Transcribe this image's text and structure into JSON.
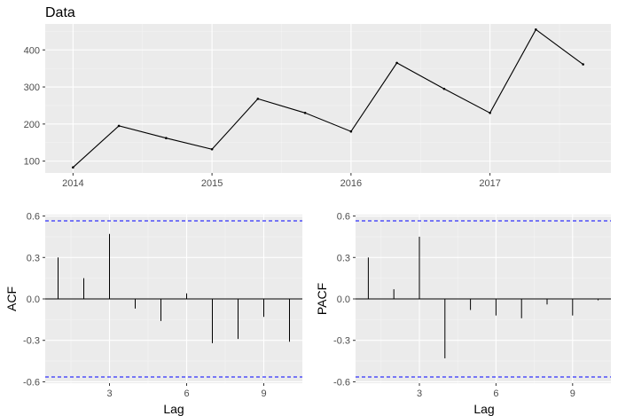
{
  "chart_data": [
    {
      "type": "line",
      "title": "Data",
      "xlabel": "",
      "ylabel": "",
      "x": [
        2014.0,
        2014.33,
        2014.67,
        2015.0,
        2015.33,
        2015.67,
        2016.0,
        2016.33,
        2016.67,
        2017.0,
        2017.33,
        2017.67
      ],
      "values": [
        83,
        195,
        162,
        132,
        268,
        230,
        180,
        365,
        295,
        230,
        455,
        361
      ],
      "xlim": [
        2013.8,
        2017.87
      ],
      "ylim": [
        68,
        470
      ],
      "xticks": [
        2014,
        2015,
        2016,
        2017
      ],
      "xtick_labels": [
        "2014",
        "2015",
        "2016",
        "2017"
      ],
      "yticks": [
        100,
        200,
        300,
        400
      ],
      "ytick_labels": [
        "100",
        "200",
        "300",
        "400"
      ],
      "grid": true
    },
    {
      "type": "bar",
      "title": "",
      "xlabel": "Lag",
      "ylabel": "ACF",
      "lags": [
        1,
        2,
        3,
        4,
        5,
        6,
        7,
        8,
        9,
        10
      ],
      "values": [
        0.3,
        0.15,
        0.47,
        -0.07,
        -0.16,
        0.04,
        -0.32,
        -0.29,
        -0.13,
        -0.31
      ],
      "confidence": 0.565,
      "xlim": [
        0.5,
        10.5
      ],
      "ylim": [
        -0.61,
        0.61
      ],
      "xticks": [
        3,
        6,
        9
      ],
      "xtick_labels": [
        "3",
        "6",
        "9"
      ],
      "yticks": [
        -0.6,
        -0.3,
        0.0,
        0.3,
        0.6
      ],
      "ytick_labels": [
        "-0.6",
        "-0.3",
        "0.0",
        "0.3",
        "0.6"
      ],
      "grid": true
    },
    {
      "type": "bar",
      "title": "",
      "xlabel": "Lag",
      "ylabel": "PACF",
      "lags": [
        1,
        2,
        3,
        4,
        5,
        6,
        7,
        8,
        9,
        10
      ],
      "values": [
        0.3,
        0.07,
        0.45,
        -0.43,
        -0.08,
        -0.12,
        -0.14,
        -0.04,
        -0.12,
        -0.01
      ],
      "confidence": 0.565,
      "xlim": [
        0.5,
        10.5
      ],
      "ylim": [
        -0.61,
        0.61
      ],
      "xticks": [
        3,
        6,
        9
      ],
      "xtick_labels": [
        "3",
        "6",
        "9"
      ],
      "yticks": [
        -0.6,
        -0.3,
        0.0,
        0.3,
        0.6
      ],
      "ytick_labels": [
        "-0.6",
        "-0.3",
        "0.0",
        "0.3",
        "0.6"
      ],
      "grid": true
    }
  ]
}
